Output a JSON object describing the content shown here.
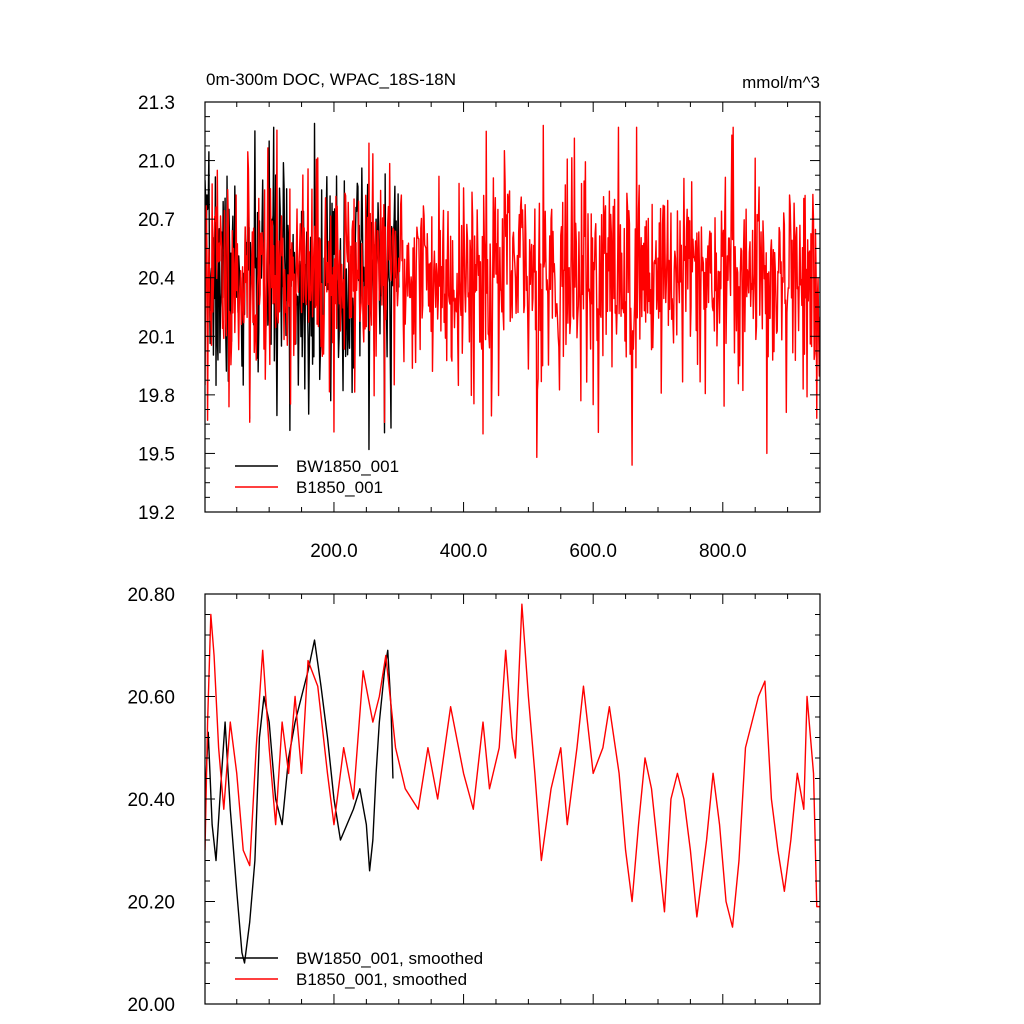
{
  "colors": {
    "series_1": "#000000",
    "series_2": "#ff0000"
  },
  "chart_data": [
    {
      "type": "line",
      "title": "0m-300m DOC, WPAC_18S-18N",
      "units": "mmol/m^3",
      "xlabel": "",
      "ylabel": "",
      "xlim": [
        1,
        950
      ],
      "ylim": [
        19.2,
        21.3
      ],
      "yticks": [
        "19.2",
        "19.5",
        "19.8",
        "20.1",
        "20.4",
        "20.7",
        "21.0",
        "21.3"
      ],
      "xticks": [
        "200.0",
        "400.0",
        "600.0",
        "800.0"
      ],
      "legend_position": "bottom-left",
      "series": [
        {
          "name": "BW1850_001",
          "color": "#000000",
          "x_start": 1,
          "x_end": 300,
          "y_min": 19.52,
          "y_max": 21.19,
          "mean": 20.4,
          "std": 0.28,
          "seed": 7,
          "values": [
            [
              1,
              20.9
            ],
            [
              5,
              20.75
            ],
            [
              10,
              20.4
            ],
            [
              20,
              20.1
            ],
            [
              30,
              20.6
            ],
            [
              38,
              20.75
            ],
            [
              50,
              20.3
            ],
            [
              60,
              19.85
            ],
            [
              70,
              19.68
            ],
            [
              80,
              20.5
            ],
            [
              90,
              20.9
            ],
            [
              100,
              21.1
            ],
            [
              115,
              20.3
            ],
            [
              130,
              20.6
            ],
            [
              145,
              19.85
            ],
            [
              160,
              20.1
            ],
            [
              170,
              21.19
            ],
            [
              185,
              20.5
            ],
            [
              195,
              19.77
            ],
            [
              210,
              20.6
            ],
            [
              225,
              20.3
            ],
            [
              240,
              20.0
            ],
            [
              254,
              19.52
            ],
            [
              265,
              20.7
            ],
            [
              280,
              20.2
            ],
            [
              288,
              19.63
            ],
            [
              295,
              20.4
            ],
            [
              300,
              20.35
            ]
          ]
        },
        {
          "name": "B1850_001",
          "color": "#ff0000",
          "x_start": 1,
          "x_end": 950,
          "y_min": 19.44,
          "y_max": 21.19,
          "mean": 20.42,
          "std": 0.27,
          "seed": 11,
          "values": [
            [
              1,
              19.85
            ],
            [
              5,
              19.67
            ],
            [
              12,
              20.88
            ],
            [
              20,
              20.95
            ],
            [
              35,
              20.6
            ],
            [
              45,
              20.55
            ],
            [
              70,
              19.66
            ],
            [
              100,
              20.3
            ],
            [
              200,
              19.61
            ],
            [
              300,
              20.5
            ],
            [
              430,
              19.6
            ],
            [
              435,
              21.15
            ],
            [
              480,
              20.4
            ],
            [
              513,
              19.48
            ],
            [
              523,
              21.18
            ],
            [
              600,
              19.75
            ],
            [
              660,
              19.44
            ],
            [
              700,
              20.5
            ],
            [
              750,
              20.1
            ],
            [
              800,
              20.6
            ],
            [
              816,
              21.17
            ],
            [
              860,
              20.4
            ],
            [
              868,
              19.5
            ],
            [
              900,
              20.3
            ],
            [
              930,
              19.79
            ],
            [
              945,
              19.68
            ],
            [
              950,
              20.2
            ]
          ]
        }
      ]
    },
    {
      "type": "line",
      "title": "",
      "xlabel": "",
      "ylabel": "",
      "xlim": [
        1,
        950
      ],
      "ylim": [
        20.0,
        20.8
      ],
      "yticks": [
        "20.00",
        "20.20",
        "20.40",
        "20.60",
        "20.80"
      ],
      "xticks": [],
      "legend_position": "bottom-left",
      "series": [
        {
          "name": "BW1850_001, smoothed",
          "color": "#000000",
          "values": [
            [
              1,
              20.4
            ],
            [
              6,
              20.53
            ],
            [
              12,
              20.35
            ],
            [
              18,
              20.28
            ],
            [
              25,
              20.42
            ],
            [
              32,
              20.55
            ],
            [
              40,
              20.38
            ],
            [
              50,
              20.22
            ],
            [
              58,
              20.1
            ],
            [
              62,
              20.08
            ],
            [
              70,
              20.16
            ],
            [
              78,
              20.28
            ],
            [
              85,
              20.52
            ],
            [
              92,
              20.6
            ],
            [
              100,
              20.55
            ],
            [
              110,
              20.4
            ],
            [
              120,
              20.35
            ],
            [
              130,
              20.48
            ],
            [
              140,
              20.55
            ],
            [
              150,
              20.6
            ],
            [
              160,
              20.65
            ],
            [
              170,
              20.71
            ],
            [
              180,
              20.62
            ],
            [
              190,
              20.52
            ],
            [
              200,
              20.4
            ],
            [
              210,
              20.32
            ],
            [
              220,
              20.35
            ],
            [
              230,
              20.38
            ],
            [
              240,
              20.42
            ],
            [
              250,
              20.35
            ],
            [
              255,
              20.26
            ],
            [
              260,
              20.32
            ],
            [
              265,
              20.45
            ],
            [
              270,
              20.55
            ],
            [
              278,
              20.65
            ],
            [
              283,
              20.69
            ],
            [
              288,
              20.58
            ],
            [
              291,
              20.44
            ]
          ]
        },
        {
          "name": "B1850_001, smoothed",
          "color": "#ff0000",
          "values": [
            [
              1,
              20.3
            ],
            [
              5,
              20.55
            ],
            [
              10,
              20.76
            ],
            [
              15,
              20.68
            ],
            [
              22,
              20.5
            ],
            [
              30,
              20.38
            ],
            [
              40,
              20.55
            ],
            [
              50,
              20.45
            ],
            [
              60,
              20.3
            ],
            [
              70,
              20.27
            ],
            [
              80,
              20.5
            ],
            [
              90,
              20.69
            ],
            [
              100,
              20.5
            ],
            [
              110,
              20.35
            ],
            [
              120,
              20.55
            ],
            [
              130,
              20.45
            ],
            [
              140,
              20.6
            ],
            [
              150,
              20.45
            ],
            [
              160,
              20.67
            ],
            [
              175,
              20.62
            ],
            [
              190,
              20.45
            ],
            [
              200,
              20.35
            ],
            [
              215,
              20.5
            ],
            [
              230,
              20.4
            ],
            [
              245,
              20.65
            ],
            [
              260,
              20.55
            ],
            [
              270,
              20.6
            ],
            [
              280,
              20.68
            ],
            [
              295,
              20.5
            ],
            [
              310,
              20.42
            ],
            [
              330,
              20.38
            ],
            [
              345,
              20.5
            ],
            [
              360,
              20.4
            ],
            [
              380,
              20.58
            ],
            [
              400,
              20.45
            ],
            [
              415,
              20.38
            ],
            [
              430,
              20.55
            ],
            [
              440,
              20.42
            ],
            [
              455,
              20.5
            ],
            [
              465,
              20.69
            ],
            [
              475,
              20.52
            ],
            [
              480,
              20.48
            ],
            [
              490,
              20.78
            ],
            [
              500,
              20.6
            ],
            [
              510,
              20.45
            ],
            [
              520,
              20.28
            ],
            [
              535,
              20.42
            ],
            [
              550,
              20.5
            ],
            [
              560,
              20.35
            ],
            [
              575,
              20.5
            ],
            [
              585,
              20.62
            ],
            [
              600,
              20.45
            ],
            [
              615,
              20.5
            ],
            [
              625,
              20.58
            ],
            [
              640,
              20.45
            ],
            [
              650,
              20.3
            ],
            [
              660,
              20.2
            ],
            [
              670,
              20.35
            ],
            [
              680,
              20.48
            ],
            [
              690,
              20.42
            ],
            [
              700,
              20.3
            ],
            [
              710,
              20.18
            ],
            [
              720,
              20.4
            ],
            [
              730,
              20.45
            ],
            [
              740,
              20.4
            ],
            [
              750,
              20.3
            ],
            [
              760,
              20.17
            ],
            [
              775,
              20.32
            ],
            [
              785,
              20.45
            ],
            [
              795,
              20.35
            ],
            [
              805,
              20.2
            ],
            [
              815,
              20.15
            ],
            [
              825,
              20.28
            ],
            [
              835,
              20.5
            ],
            [
              845,
              20.55
            ],
            [
              855,
              20.6
            ],
            [
              865,
              20.63
            ],
            [
              875,
              20.4
            ],
            [
              885,
              20.3
            ],
            [
              895,
              20.22
            ],
            [
              905,
              20.32
            ],
            [
              915,
              20.45
            ],
            [
              925,
              20.38
            ],
            [
              930,
              20.6
            ],
            [
              940,
              20.45
            ],
            [
              945,
              20.19
            ],
            [
              950,
              20.19
            ]
          ]
        }
      ]
    }
  ]
}
